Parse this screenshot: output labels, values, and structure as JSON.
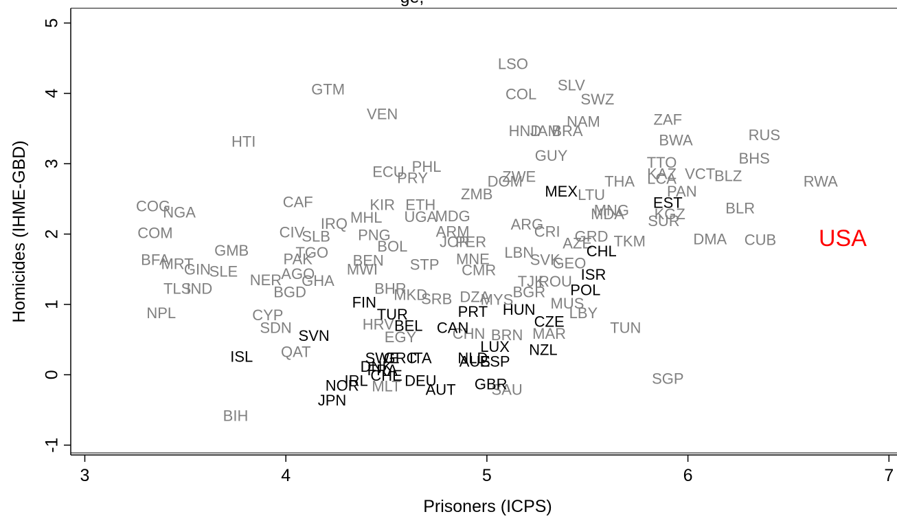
{
  "chart_data": {
    "type": "scatter",
    "title": "ge,",
    "x_label": "Prisoners (ICPS)",
    "y_label": "Homicides (IHME-GBD)",
    "xlim": [
      2.93,
      7.04
    ],
    "ylim": [
      -1.14,
      5.21
    ],
    "xticks": [
      3,
      4,
      5,
      6,
      7
    ],
    "yticks": [
      -1,
      0,
      1,
      2,
      3,
      4,
      5
    ],
    "series": [
      {
        "color": "#808080",
        "labels": [
          "LSO",
          "GTM",
          "COL",
          "SLV",
          "SWZ",
          "VEN",
          "NAM",
          "ZAF",
          "HTI",
          "HND",
          "JAM",
          "BRA",
          "BWA",
          "RUS",
          "GUY",
          "BHS",
          "TTO",
          "PHL",
          "ECU",
          "PRY",
          "ZWE",
          "DOM",
          "KAZ",
          "VCT",
          "LCA",
          "BLZ",
          "THA",
          "RWA",
          "ZMB",
          "LTU",
          "PAN",
          "CAF",
          "COG",
          "NGA",
          "KIR",
          "ETH",
          "MHL",
          "UGA",
          "MDG",
          "MNG",
          "MDA",
          "SUR",
          "BLR",
          "KGZ",
          "COM",
          "CIV",
          "ARG",
          "CRI",
          "IRQ",
          "PNG",
          "SLB",
          "ARM",
          "BOL",
          "JOR",
          "PER",
          "DMA",
          "CUB",
          "GRD",
          "TKM",
          "AZE",
          "GMB",
          "BFA",
          "MRT",
          "TGO",
          "PAK",
          "BEN",
          "MWI",
          "STP",
          "MNE",
          "LBN",
          "SVK",
          "GEO",
          "CMR",
          "GIN",
          "SLE",
          "NER",
          "AGO",
          "GHA",
          "TLS",
          "IND",
          "BGD",
          "BHR",
          "MKD",
          "ROU",
          "TJK",
          "BGR",
          "SRB",
          "DZA",
          "MYS",
          "MUS",
          "LBY",
          "NPL",
          "CYP",
          "SDN",
          "HRV",
          "EGY",
          "CHN",
          "BRN",
          "MAR",
          "TUN",
          "QAT",
          "SGP",
          "SAU",
          "MLT",
          "BIH"
        ],
        "x": [
          5.13,
          4.21,
          5.17,
          5.42,
          5.55,
          4.48,
          5.48,
          5.9,
          3.79,
          5.19,
          5.29,
          5.4,
          5.94,
          6.38,
          5.32,
          6.33,
          5.87,
          4.7,
          4.51,
          4.63,
          5.16,
          5.09,
          5.87,
          6.06,
          5.87,
          6.2,
          5.66,
          6.66,
          4.95,
          5.52,
          5.97,
          4.06,
          3.34,
          3.47,
          4.48,
          4.67,
          4.4,
          4.67,
          4.83,
          5.62,
          5.6,
          5.88,
          6.26,
          5.91,
          3.35,
          4.03,
          5.2,
          5.3,
          4.24,
          4.44,
          4.15,
          4.83,
          4.53,
          4.84,
          4.92,
          6.11,
          6.36,
          5.52,
          5.71,
          5.45,
          3.73,
          3.35,
          3.46,
          4.13,
          4.06,
          4.41,
          4.38,
          4.69,
          4.93,
          5.16,
          5.29,
          5.41,
          4.96,
          3.56,
          3.69,
          3.9,
          4.06,
          4.16,
          3.46,
          3.57,
          4.02,
          4.52,
          4.62,
          5.34,
          5.22,
          5.21,
          4.75,
          4.94,
          5.05,
          5.4,
          5.48,
          3.38,
          3.91,
          3.95,
          4.46,
          4.57,
          4.91,
          5.1,
          5.31,
          5.69,
          4.05,
          5.9,
          5.1,
          4.5,
          3.75
        ],
        "values": [
          4.4,
          4.04,
          3.97,
          4.1,
          3.9,
          3.69,
          3.58,
          3.61,
          3.3,
          3.45,
          3.45,
          3.45,
          3.32,
          3.39,
          3.1,
          3.06,
          3.0,
          2.94,
          2.87,
          2.78,
          2.8,
          2.73,
          2.84,
          2.84,
          2.77,
          2.81,
          2.73,
          2.73,
          2.55,
          2.54,
          2.59,
          2.44,
          2.38,
          2.29,
          2.4,
          2.4,
          2.22,
          2.23,
          2.24,
          2.32,
          2.27,
          2.17,
          2.35,
          2.27,
          2.0,
          2.01,
          2.12,
          2.02,
          2.13,
          1.97,
          1.95,
          2.02,
          1.81,
          1.87,
          1.87,
          1.91,
          1.9,
          1.95,
          1.88,
          1.85,
          1.75,
          1.62,
          1.56,
          1.72,
          1.63,
          1.61,
          1.48,
          1.55,
          1.63,
          1.72,
          1.62,
          1.57,
          1.47,
          1.48,
          1.45,
          1.33,
          1.42,
          1.32,
          1.21,
          1.21,
          1.16,
          1.21,
          1.12,
          1.31,
          1.31,
          1.16,
          1.06,
          1.09,
          1.05,
          1.0,
          0.86,
          0.86,
          0.83,
          0.65,
          0.7,
          0.52,
          0.57,
          0.55,
          0.57,
          0.65,
          0.31,
          -0.07,
          -0.23,
          -0.18,
          -0.6
        ]
      },
      {
        "color": "#000000",
        "labels": [
          "MEX",
          "EST",
          "CHL",
          "ISR",
          "POL",
          "FIN",
          "PRT",
          "HUN",
          "TUR",
          "BEL",
          "CAN",
          "CZE",
          "SVN",
          "LUX",
          "NZL",
          "ISL",
          "GRC",
          "ITA",
          "SWE",
          "NLD",
          "AUS",
          "ESP",
          "DNK",
          "FRA",
          "CHE",
          "IRL",
          "NOR",
          "DEU",
          "AUT",
          "GBR",
          "JPN"
        ],
        "x": [
          5.37,
          5.9,
          5.57,
          5.53,
          5.49,
          4.39,
          4.93,
          5.16,
          4.53,
          4.61,
          4.83,
          5.31,
          4.14,
          5.04,
          5.28,
          3.78,
          4.57,
          4.67,
          4.48,
          4.93,
          4.94,
          5.04,
          4.45,
          4.48,
          4.5,
          4.35,
          4.28,
          4.67,
          4.77,
          5.02,
          4.23
        ],
        "values": [
          2.59,
          2.43,
          1.74,
          1.41,
          1.19,
          1.01,
          0.88,
          0.91,
          0.84,
          0.68,
          0.65,
          0.74,
          0.54,
          0.38,
          0.34,
          0.24,
          0.22,
          0.22,
          0.22,
          0.22,
          0.17,
          0.17,
          0.1,
          0.05,
          -0.03,
          -0.1,
          -0.17,
          -0.1,
          -0.23,
          -0.15,
          -0.38
        ]
      },
      {
        "color": "#ff0000",
        "labels": [
          "USA"
        ],
        "x": [
          6.77
        ],
        "values": [
          1.92
        ]
      }
    ]
  }
}
